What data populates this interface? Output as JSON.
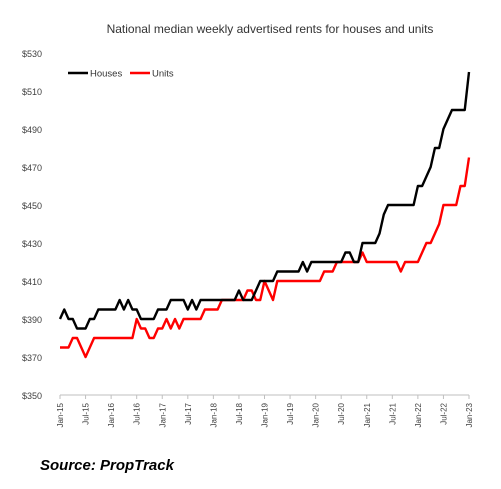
{
  "title": "National median weekly advertised rents for houses and units",
  "source": "Source: PropTrack",
  "chart_data": {
    "type": "line",
    "title": "National median weekly advertised rents for houses and units",
    "xlabel": "",
    "ylabel": "",
    "ylim": [
      350,
      530
    ],
    "yticks": [
      350,
      370,
      390,
      410,
      430,
      450,
      470,
      490,
      510,
      530
    ],
    "ytick_labels": [
      "$350",
      "$370",
      "$390",
      "$410",
      "$430",
      "$450",
      "$470",
      "$490",
      "$510",
      "$530"
    ],
    "x_range_months": [
      0,
      96
    ],
    "xticks": [
      {
        "label": "Jan-15",
        "month": 0
      },
      {
        "label": "Jul-15",
        "month": 6
      },
      {
        "label": "Jan-16",
        "month": 12
      },
      {
        "label": "Jul-16",
        "month": 18
      },
      {
        "label": "Jan-17",
        "month": 24
      },
      {
        "label": "Jul-17",
        "month": 30
      },
      {
        "label": "Jan-18",
        "month": 36
      },
      {
        "label": "Jul-18",
        "month": 42
      },
      {
        "label": "Jan-19",
        "month": 48
      },
      {
        "label": "Jul-19",
        "month": 54
      },
      {
        "label": "Jan-20",
        "month": 60
      },
      {
        "label": "Jul-20",
        "month": 66
      },
      {
        "label": "Jan-21",
        "month": 72
      },
      {
        "label": "Jul-21",
        "month": 78
      },
      {
        "label": "Jan-22",
        "month": 84
      },
      {
        "label": "Jul-22",
        "month": 90
      },
      {
        "label": "Jan-23",
        "month": 96
      }
    ],
    "grid": false,
    "legend": "top-left",
    "series": [
      {
        "name": "Houses",
        "color": "#000000",
        "points": [
          [
            0,
            390
          ],
          [
            1,
            395
          ],
          [
            2,
            390
          ],
          [
            3,
            390
          ],
          [
            4,
            385
          ],
          [
            5,
            385
          ],
          [
            6,
            385
          ],
          [
            7,
            390
          ],
          [
            8,
            390
          ],
          [
            9,
            395
          ],
          [
            10,
            395
          ],
          [
            11,
            395
          ],
          [
            12,
            395
          ],
          [
            13,
            395
          ],
          [
            14,
            400
          ],
          [
            15,
            395
          ],
          [
            16,
            400
          ],
          [
            17,
            395
          ],
          [
            18,
            395
          ],
          [
            19,
            390
          ],
          [
            20,
            390
          ],
          [
            21,
            390
          ],
          [
            22,
            390
          ],
          [
            23,
            395
          ],
          [
            24,
            395
          ],
          [
            25,
            395
          ],
          [
            26,
            400
          ],
          [
            27,
            400
          ],
          [
            28,
            400
          ],
          [
            29,
            400
          ],
          [
            30,
            395
          ],
          [
            31,
            400
          ],
          [
            32,
            395
          ],
          [
            33,
            400
          ],
          [
            34,
            400
          ],
          [
            35,
            400
          ],
          [
            36,
            400
          ],
          [
            37,
            400
          ],
          [
            38,
            400
          ],
          [
            39,
            400
          ],
          [
            40,
            400
          ],
          [
            41,
            400
          ],
          [
            42,
            405
          ],
          [
            43,
            400
          ],
          [
            44,
            400
          ],
          [
            45,
            400
          ],
          [
            46,
            405
          ],
          [
            47,
            410
          ],
          [
            48,
            410
          ],
          [
            49,
            410
          ],
          [
            50,
            410
          ],
          [
            51,
            415
          ],
          [
            52,
            415
          ],
          [
            53,
            415
          ],
          [
            54,
            415
          ],
          [
            55,
            415
          ],
          [
            56,
            415
          ],
          [
            57,
            420
          ],
          [
            58,
            415
          ],
          [
            59,
            420
          ],
          [
            60,
            420
          ],
          [
            61,
            420
          ],
          [
            62,
            420
          ],
          [
            63,
            420
          ],
          [
            64,
            420
          ],
          [
            65,
            420
          ],
          [
            66,
            420
          ],
          [
            67,
            425
          ],
          [
            68,
            425
          ],
          [
            69,
            420
          ],
          [
            70,
            420
          ],
          [
            71,
            430
          ],
          [
            72,
            430
          ],
          [
            73,
            430
          ],
          [
            74,
            430
          ],
          [
            75,
            435
          ],
          [
            76,
            445
          ],
          [
            77,
            450
          ],
          [
            78,
            450
          ],
          [
            79,
            450
          ],
          [
            80,
            450
          ],
          [
            81,
            450
          ],
          [
            82,
            450
          ],
          [
            83,
            450
          ],
          [
            84,
            460
          ],
          [
            85,
            460
          ],
          [
            86,
            465
          ],
          [
            87,
            470
          ],
          [
            88,
            480
          ],
          [
            89,
            480
          ],
          [
            90,
            490
          ],
          [
            91,
            495
          ],
          [
            92,
            500
          ],
          [
            93,
            500
          ],
          [
            94,
            500
          ],
          [
            95,
            500
          ],
          [
            96,
            520
          ]
        ]
      },
      {
        "name": "Units",
        "color": "#ff0000",
        "points": [
          [
            0,
            375
          ],
          [
            1,
            375
          ],
          [
            2,
            375
          ],
          [
            3,
            380
          ],
          [
            4,
            380
          ],
          [
            5,
            375
          ],
          [
            6,
            370
          ],
          [
            7,
            375
          ],
          [
            8,
            380
          ],
          [
            9,
            380
          ],
          [
            10,
            380
          ],
          [
            11,
            380
          ],
          [
            12,
            380
          ],
          [
            13,
            380
          ],
          [
            14,
            380
          ],
          [
            15,
            380
          ],
          [
            16,
            380
          ],
          [
            17,
            380
          ],
          [
            18,
            390
          ],
          [
            19,
            385
          ],
          [
            20,
            385
          ],
          [
            21,
            380
          ],
          [
            22,
            380
          ],
          [
            23,
            385
          ],
          [
            24,
            385
          ],
          [
            25,
            390
          ],
          [
            26,
            385
          ],
          [
            27,
            390
          ],
          [
            28,
            385
          ],
          [
            29,
            390
          ],
          [
            30,
            390
          ],
          [
            31,
            390
          ],
          [
            32,
            390
          ],
          [
            33,
            390
          ],
          [
            34,
            395
          ],
          [
            35,
            395
          ],
          [
            36,
            395
          ],
          [
            37,
            395
          ],
          [
            38,
            400
          ],
          [
            39,
            400
          ],
          [
            40,
            400
          ],
          [
            41,
            400
          ],
          [
            42,
            400
          ],
          [
            43,
            400
          ],
          [
            44,
            405
          ],
          [
            45,
            405
          ],
          [
            46,
            400
          ],
          [
            47,
            400
          ],
          [
            48,
            410
          ],
          [
            49,
            405
          ],
          [
            50,
            400
          ],
          [
            51,
            410
          ],
          [
            52,
            410
          ],
          [
            53,
            410
          ],
          [
            54,
            410
          ],
          [
            55,
            410
          ],
          [
            56,
            410
          ],
          [
            57,
            410
          ],
          [
            58,
            410
          ],
          [
            59,
            410
          ],
          [
            60,
            410
          ],
          [
            61,
            410
          ],
          [
            62,
            415
          ],
          [
            63,
            415
          ],
          [
            64,
            415
          ],
          [
            65,
            420
          ],
          [
            66,
            420
          ],
          [
            67,
            420
          ],
          [
            68,
            420
          ],
          [
            69,
            420
          ],
          [
            70,
            420
          ],
          [
            71,
            425
          ],
          [
            72,
            420
          ],
          [
            73,
            420
          ],
          [
            74,
            420
          ],
          [
            75,
            420
          ],
          [
            76,
            420
          ],
          [
            77,
            420
          ],
          [
            78,
            420
          ],
          [
            79,
            420
          ],
          [
            80,
            415
          ],
          [
            81,
            420
          ],
          [
            82,
            420
          ],
          [
            83,
            420
          ],
          [
            84,
            420
          ],
          [
            85,
            425
          ],
          [
            86,
            430
          ],
          [
            87,
            430
          ],
          [
            88,
            435
          ],
          [
            89,
            440
          ],
          [
            90,
            450
          ],
          [
            91,
            450
          ],
          [
            92,
            450
          ],
          [
            93,
            450
          ],
          [
            94,
            460
          ],
          [
            95,
            460
          ],
          [
            96,
            475
          ]
        ]
      }
    ]
  }
}
